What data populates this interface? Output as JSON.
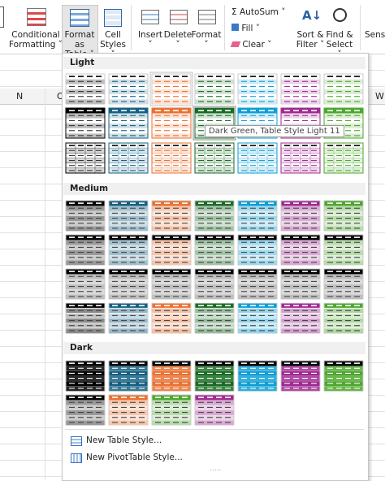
{
  "ribbon": {
    "conditional_formatting": {
      "line1": "Conditional",
      "line2": "Formatting"
    },
    "format_as_table": {
      "line1": "Format as",
      "line2": "Table"
    },
    "cell_styles": {
      "line1": "Cell",
      "line2": "Styles"
    },
    "insert": "Insert",
    "delete": "Delete",
    "format": "Format",
    "autosum": "AutoSum",
    "fill": "Fill",
    "clear": "Clear",
    "sort_filter": {
      "line1": "Sort &",
      "line2": "Filter"
    },
    "find_select": {
      "line1": "Find &",
      "line2": "Select"
    },
    "sensitivity": "Sensiti"
  },
  "sheet": {
    "columns": [
      "N",
      "O",
      "W"
    ]
  },
  "gallery": {
    "sections": [
      "Light",
      "Medium",
      "Dark"
    ],
    "tooltip": "Dark Green, Table Style Light 11",
    "menu": [
      "New Table Style...",
      "New PivotTable Style..."
    ]
  }
}
